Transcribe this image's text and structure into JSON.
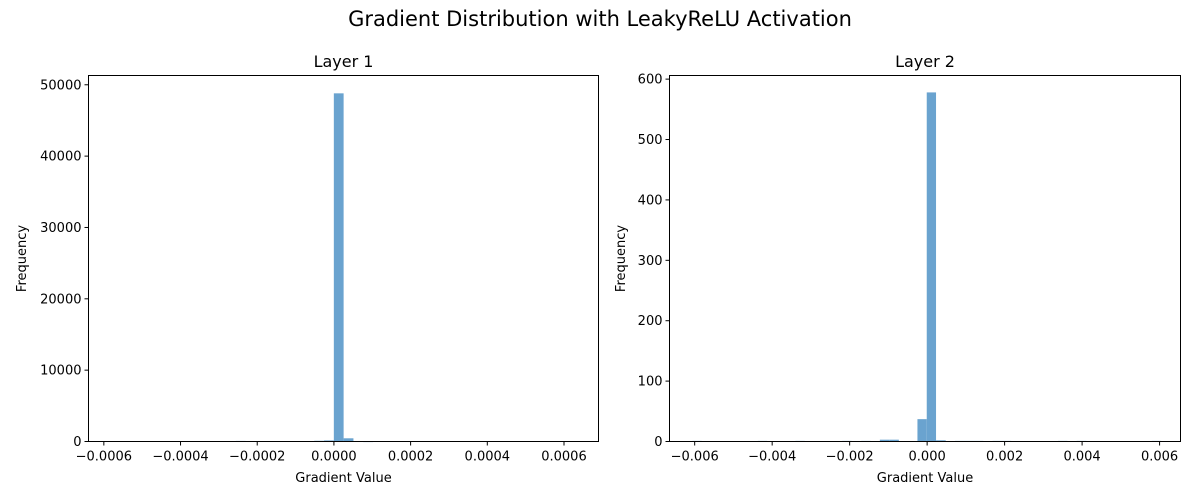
{
  "figure": {
    "suptitle": "Gradient Distribution with LeakyReLU Activation"
  },
  "chart_data": [
    {
      "type": "bar",
      "title": "Layer 1",
      "xlabel": "Gradient Value",
      "ylabel": "Frequency",
      "xlim": [
        -0.00064,
        0.00069
      ],
      "ylim": [
        0,
        51300
      ],
      "xticks": [
        -0.0006,
        -0.0004,
        -0.0002,
        0.0,
        0.0002,
        0.0004,
        0.0006
      ],
      "xtick_labels": [
        "−0.0006",
        "−0.0004",
        "−0.0002",
        "0.0000",
        "0.0002",
        "0.0004",
        "0.0006"
      ],
      "yticks": [
        0,
        10000,
        20000,
        30000,
        40000,
        50000
      ],
      "ytick_labels": [
        "0",
        "10000",
        "20000",
        "30000",
        "40000",
        "50000"
      ],
      "bins": [
        {
          "x0": -0.0002558,
          "x1": -0.0002303,
          "value": 80
        },
        {
          "x0": -7.69e-05,
          "x1": -5.13e-05,
          "value": 60
        },
        {
          "x0": -5.13e-05,
          "x1": -2.58e-05,
          "value": 100
        },
        {
          "x0": -2.58e-05,
          "x1": -2e-07,
          "value": 150
        },
        {
          "x0": -2e-07,
          "x1": 2.53e-05,
          "value": 48800
        },
        {
          "x0": 2.53e-05,
          "x1": 5.09e-05,
          "value": 450
        },
        {
          "x0": 5.09e-05,
          "x1": 7.64e-05,
          "value": 60
        },
        {
          "x0": 7.64e-05,
          "x1": 0.000102,
          "value": 30
        }
      ],
      "color": "#6aa3cf",
      "grid": false
    },
    {
      "type": "bar",
      "title": "Layer 2",
      "xlabel": "Gradient Value",
      "ylabel": "Frequency",
      "xlim": [
        -0.00665,
        0.00654
      ],
      "ylim": [
        0,
        606
      ],
      "xticks": [
        -0.006,
        -0.004,
        -0.002,
        0.0,
        0.002,
        0.004,
        0.006
      ],
      "xtick_labels": [
        "−0.006",
        "−0.004",
        "−0.002",
        "0.000",
        "0.002",
        "0.004",
        "0.006"
      ],
      "yticks": [
        0,
        100,
        200,
        300,
        400,
        500,
        600
      ],
      "ytick_labels": [
        "0",
        "100",
        "200",
        "300",
        "400",
        "500",
        "600"
      ],
      "bins": [
        {
          "x0": -0.00606,
          "x1": -0.00582,
          "value": 1
        },
        {
          "x0": -0.00437,
          "x1": -0.00413,
          "value": 1
        },
        {
          "x0": -0.0034,
          "x1": -0.00316,
          "value": 1
        },
        {
          "x0": -0.00219,
          "x1": -0.00195,
          "value": 1
        },
        {
          "x0": -0.0017,
          "x1": -0.00146,
          "value": 1
        },
        {
          "x0": -0.00122,
          "x1": -0.00098,
          "value": 3
        },
        {
          "x0": -0.00098,
          "x1": -0.00073,
          "value": 3
        },
        {
          "x0": -0.00025,
          "x1": -1e-05,
          "value": 37
        },
        {
          "x0": -1e-05,
          "x1": 0.00023,
          "value": 578
        },
        {
          "x0": 0.00023,
          "x1": 0.00048,
          "value": 2
        },
        {
          "x0": 0.00072,
          "x1": 0.00096,
          "value": 1
        },
        {
          "x0": 0.00096,
          "x1": 0.0012,
          "value": 1
        },
        {
          "x0": 0.0012,
          "x1": 0.00145,
          "value": 1
        },
        {
          "x0": 0.00169,
          "x1": 0.00193,
          "value": 1
        },
        {
          "x0": 0.00193,
          "x1": 0.00217,
          "value": 1
        },
        {
          "x0": 0.00338,
          "x1": 0.00362,
          "value": 1
        },
        {
          "x0": 0.00386,
          "x1": 0.00411,
          "value": 1
        },
        {
          "x0": 0.0058,
          "x1": 0.00604,
          "value": 1
        }
      ],
      "color": "#6aa3cf",
      "grid": false
    }
  ]
}
